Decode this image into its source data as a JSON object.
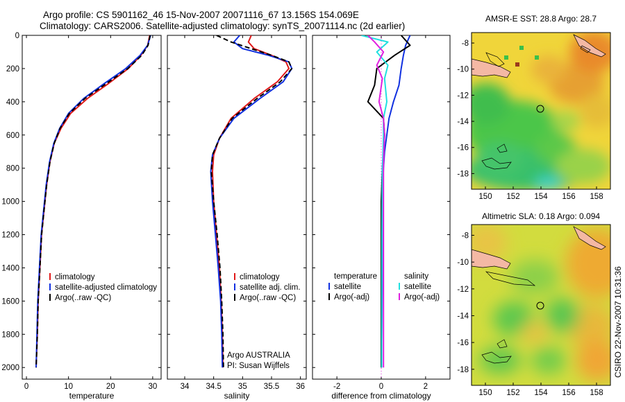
{
  "header": {
    "line1": "Argo profile: CS 5901162_46 15-Nov-2007 20071116_67 13.156S 154.069E",
    "line2": "Climatology: CARS2006. Satellite-adjusted climatology: synTS_20071114.nc (2d earlier)"
  },
  "colors": {
    "climatology": "#e11919",
    "satellite": "#1030e0",
    "argo": "#000000",
    "salinity_satellite": "#20e0e0",
    "salinity_argo": "#e020e0"
  },
  "chart_data": [
    {
      "type": "line",
      "xlabel": "temperature",
      "xlim": [
        -1,
        32
      ],
      "xticks": [
        0,
        10,
        20,
        30
      ],
      "ylim": [
        2070,
        0
      ],
      "yticks": [
        0,
        200,
        400,
        600,
        800,
        1000,
        1200,
        1400,
        1600,
        1800,
        2000
      ],
      "legend": [
        "climatology",
        "satellite-adjusted climatology",
        "Argo(..raw -QC)"
      ],
      "series": [
        {
          "name": "climatology",
          "style": "solid",
          "color": "red",
          "x": [
            29.3,
            28.8,
            27.2,
            24.2,
            19.5,
            14.5,
            10.5,
            8.2,
            6.6,
            5.6,
            4.8,
            4.2,
            3.6,
            3.2,
            2.8,
            2.6,
            2.3
          ],
          "y": [
            0,
            60,
            120,
            200,
            290,
            380,
            470,
            560,
            650,
            760,
            900,
            1050,
            1200,
            1400,
            1600,
            1800,
            2000
          ]
        },
        {
          "name": "satellite-adjusted climatology",
          "style": "solid",
          "color": "blue",
          "x": [
            29.5,
            28.8,
            27.0,
            23.6,
            18.5,
            13.6,
            10.0,
            7.9,
            6.5,
            5.5,
            4.7,
            4.1,
            3.5,
            3.1,
            2.7,
            2.5,
            2.3
          ],
          "y": [
            0,
            60,
            120,
            200,
            290,
            380,
            470,
            560,
            650,
            760,
            900,
            1050,
            1200,
            1400,
            1600,
            1800,
            2000
          ]
        },
        {
          "name": "Argo(..raw -QC)",
          "style": "dashed",
          "color": "black",
          "x": [
            29.4,
            28.9,
            27.4,
            24.1,
            19.0,
            13.9,
            10.2,
            8.0,
            6.6,
            5.6,
            4.8,
            4.2,
            3.6,
            3.2,
            2.8,
            2.6,
            2.3
          ],
          "y": [
            0,
            60,
            120,
            200,
            290,
            380,
            470,
            560,
            650,
            760,
            900,
            1050,
            1200,
            1400,
            1600,
            1800,
            2000
          ]
        }
      ]
    },
    {
      "type": "line",
      "xlabel": "salinity",
      "xlim": [
        33.7,
        36.1
      ],
      "xticks": [
        34,
        34.5,
        35,
        35.5,
        36
      ],
      "ylim": [
        2070,
        0
      ],
      "legend": [
        "climatology",
        "satellite adj. clim.",
        "Argo(..raw -QC)"
      ],
      "annotation": [
        "Argo AUSTRALIA",
        "PI: Susan Wijffels"
      ],
      "series": [
        {
          "name": "climatology",
          "style": "solid",
          "color": "red",
          "x": [
            35.15,
            35.1,
            35.2,
            35.5,
            35.75,
            35.8,
            35.6,
            35.2,
            34.8,
            34.6,
            34.5,
            34.48,
            34.5,
            34.55,
            34.6,
            34.63,
            34.65,
            34.66
          ],
          "y": [
            0,
            40,
            80,
            120,
            160,
            200,
            280,
            380,
            500,
            620,
            720,
            820,
            1000,
            1200,
            1400,
            1600,
            1800,
            2000
          ]
        },
        {
          "name": "satellite adj. clim.",
          "style": "solid",
          "color": "blue",
          "x": [
            34.95,
            34.85,
            35.0,
            35.45,
            35.8,
            35.85,
            35.7,
            35.3,
            34.85,
            34.6,
            34.48,
            34.45,
            34.48,
            34.53,
            34.58,
            34.62,
            34.64,
            34.65
          ],
          "y": [
            0,
            40,
            80,
            120,
            160,
            200,
            280,
            380,
            500,
            620,
            720,
            820,
            1000,
            1200,
            1400,
            1600,
            1800,
            2000
          ]
        },
        {
          "name": "Argo(..raw -QC)",
          "style": "dashed",
          "color": "black",
          "x": [
            34.55,
            34.8,
            35.15,
            35.5,
            35.8,
            35.85,
            35.65,
            35.25,
            34.82,
            34.6,
            34.48,
            34.46,
            34.5,
            34.56,
            34.61,
            34.64,
            34.66,
            34.67
          ],
          "y": [
            0,
            40,
            80,
            120,
            160,
            200,
            280,
            380,
            500,
            620,
            720,
            820,
            1000,
            1200,
            1400,
            1600,
            1800,
            2000
          ]
        }
      ]
    },
    {
      "type": "line",
      "xlabel": "difference from climatology",
      "xlim": [
        -3.1,
        3.1
      ],
      "xticks": [
        -2,
        0,
        2
      ],
      "ylim": [
        2070,
        0
      ],
      "legend_left": {
        "title": "temperature",
        "entries": [
          "satellite",
          "Argo(-adj)"
        ]
      },
      "legend_right": {
        "title": "salinity",
        "entries": [
          "satellite",
          "Argo(-adj)"
        ]
      },
      "series": [
        {
          "name": "temperature satellite",
          "style": "solid",
          "color": "blue",
          "x": [
            1.3,
            1.1,
            1.0,
            0.9,
            0.8,
            0.55,
            0.35,
            0.25,
            0.15,
            0.1,
            0.05,
            0.05,
            0.0
          ],
          "y": [
            0,
            60,
            120,
            200,
            300,
            400,
            500,
            600,
            700,
            800,
            1000,
            1500,
            2000
          ]
        },
        {
          "name": "temperature Argo(-adj)",
          "style": "solid",
          "color": "black",
          "x": [
            0.9,
            1.3,
            0.6,
            -0.2,
            -0.3,
            -0.6,
            0.1,
            0.15,
            0.1,
            0.05,
            0.0,
            0.0,
            0.0
          ],
          "y": [
            0,
            60,
            120,
            200,
            300,
            400,
            500,
            600,
            700,
            800,
            1000,
            1500,
            2000
          ]
        },
        {
          "name": "salinity satellite",
          "style": "solid",
          "color": "cyan",
          "x": [
            -0.9,
            0.3,
            -0.2,
            0.3,
            0.15,
            0.25,
            0.1,
            0.1,
            0.08,
            0.05,
            0.03,
            0.02
          ],
          "y": [
            0,
            40,
            100,
            180,
            260,
            400,
            500,
            600,
            700,
            800,
            1200,
            2000
          ]
        },
        {
          "name": "salinity Argo(-adj)",
          "style": "solid",
          "color": "magenta",
          "x": [
            -0.6,
            -0.3,
            0.1,
            -0.2,
            0.05,
            -0.1,
            0.1,
            0.15,
            0.12,
            0.1,
            0.1,
            0.1
          ],
          "y": [
            0,
            40,
            100,
            180,
            260,
            400,
            500,
            600,
            700,
            800,
            1200,
            2000
          ]
        }
      ]
    },
    {
      "type": "heatmap",
      "title": "AMSR-E SST: 28.8 Argo: 28.7",
      "xlim": [
        149,
        159
      ],
      "xticks": [
        150,
        152,
        154,
        156,
        158
      ],
      "ylim": [
        -19.2,
        -7.2
      ],
      "yticks": [
        -8,
        -10,
        -12,
        -14,
        -16,
        -18
      ],
      "marker": {
        "lon": 154.069,
        "lat": -13.156
      }
    },
    {
      "type": "heatmap",
      "title": "Altimetric SLA: 0.18 Argo: 0.094",
      "xlim": [
        149,
        159
      ],
      "xticks": [
        150,
        152,
        154,
        156,
        158
      ],
      "ylim": [
        -19.2,
        -7.2
      ],
      "yticks": [
        -8,
        -10,
        -12,
        -14,
        -16,
        -18
      ],
      "marker": {
        "lon": 154.069,
        "lat": -13.156
      }
    }
  ],
  "footer": {
    "credit": "CSIRO 22-Nov-2007 10:31:36"
  }
}
